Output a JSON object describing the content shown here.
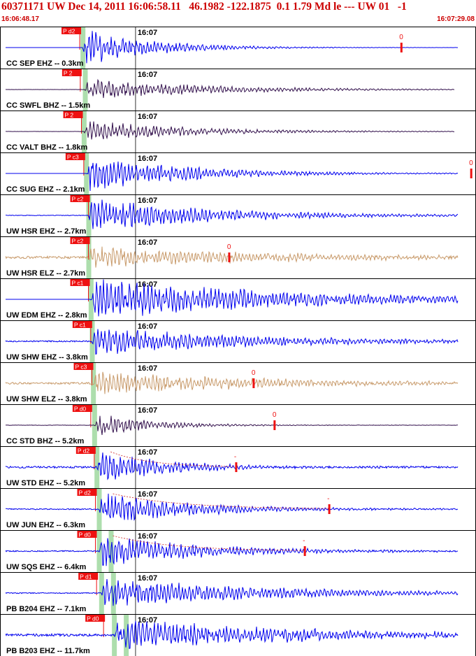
{
  "header": {
    "title": "60371171 UW Dec 14, 2011 16:06:58.11   46.1982 -122.1875  0.1 1.79 Md le --- UW 01   -1",
    "start_time": "16:06:48.17",
    "end_time": "16:07:29.08"
  },
  "colors": {
    "header_red": "#cc0000",
    "pick_red": "#ee1111",
    "blue": "#0000ee",
    "dark": "#33114d",
    "tan": "#c89a6a",
    "green_band": "#9fd89f"
  },
  "chart_data": {
    "type": "line",
    "title": "60371171 UW Dec 14, 2011 16:06:58.11   46.1982 -122.1875  0.1 1.79 Md le --- UW 01   -1",
    "xlim": [
      "16:06:48.17",
      "16:07:29.08"
    ],
    "minute_marker": "16:07",
    "series": [
      {
        "name": "CC SEP EHZ -- 0.3km",
        "color": "blue",
        "pick": "P d2",
        "pick_time_s": 6.85,
        "onset_s": 7.1,
        "amp": 0.9,
        "decay": 6,
        "noise": 0.0,
        "coda": "0",
        "coda_time_s": 34.5,
        "duration_mark": false
      },
      {
        "name": "CC SWFL BHZ -- 1.5km",
        "color": "dark",
        "pick": "P 2",
        "pick_time_s": 6.9,
        "onset_s": 7.3,
        "amp": 0.55,
        "decay": 10,
        "noise": 0.01,
        "coda": "",
        "coda_time_s": null,
        "duration_mark": false
      },
      {
        "name": "CC VALT BHZ -- 1.8km",
        "color": "dark",
        "pick": "P 2",
        "pick_time_s": 7.0,
        "onset_s": 7.2,
        "amp": 0.55,
        "decay": 9,
        "noise": 0.01,
        "coda": "",
        "coda_time_s": null,
        "duration_mark": false
      },
      {
        "name": "CC SUG EHZ -- 2.1km",
        "color": "blue",
        "pick": "P c3",
        "pick_time_s": 7.2,
        "onset_s": 7.4,
        "amp": 0.85,
        "decay": 9,
        "noise": 0.0,
        "coda": "0",
        "coda_time_s": 40.5,
        "duration_mark": false
      },
      {
        "name": "UW HSR EHZ -- 2.7km",
        "color": "blue",
        "pick": "P c2",
        "pick_time_s": 7.6,
        "onset_s": 7.6,
        "amp": 0.85,
        "decay": 11,
        "noise": 0.03,
        "coda": "",
        "coda_time_s": null,
        "duration_mark": false
      },
      {
        "name": "UW HSR ELZ -- 2.7km",
        "color": "tan",
        "pick": "P c2",
        "pick_time_s": 7.6,
        "onset_s": 7.6,
        "amp": 0.6,
        "decay": 14,
        "noise": 0.12,
        "coda": "0",
        "coda_time_s": 19.7,
        "duration_mark": false
      },
      {
        "name": "UW EDM EHZ -- 2.8km",
        "color": "blue",
        "pick": "P c1",
        "pick_time_s": 7.6,
        "onset_s": 7.8,
        "amp": 1.0,
        "decay": 18,
        "noise": 0.0,
        "coda": "",
        "coda_time_s": null,
        "duration_mark": false
      },
      {
        "name": "UW SHW EHZ -- 3.8km",
        "color": "blue",
        "pick": "P c1",
        "pick_time_s": 7.8,
        "onset_s": 7.9,
        "amp": 0.7,
        "decay": 14,
        "noise": 0.07,
        "coda": "",
        "coda_time_s": null,
        "duration_mark": false
      },
      {
        "name": "UW SHW ELZ -- 3.8km",
        "color": "tan",
        "pick": "P c3",
        "pick_time_s": 7.9,
        "onset_s": 8.0,
        "amp": 0.6,
        "decay": 14,
        "noise": 0.1,
        "coda": "0",
        "coda_time_s": 21.8,
        "duration_mark": false
      },
      {
        "name": "CC STD BHZ -- 5.2km",
        "color": "dark",
        "pick": "P d0",
        "pick_time_s": 7.8,
        "onset_s": 8.1,
        "amp": 0.6,
        "decay": 5,
        "noise": 0.02,
        "coda": "0",
        "coda_time_s": 23.6,
        "duration_mark": false
      },
      {
        "name": "UW STD EHZ -- 5.2km",
        "color": "blue",
        "pick": "P d2",
        "pick_time_s": 8.1,
        "onset_s": 8.3,
        "amp": 0.85,
        "decay": 6,
        "noise": 0.1,
        "coda": "-",
        "coda_time_s": 20.3,
        "duration_mark": true
      },
      {
        "name": "UW JUN EHZ -- 6.3km",
        "color": "blue",
        "pick": "P d2",
        "pick_time_s": 8.2,
        "onset_s": 8.5,
        "amp": 0.8,
        "decay": 8,
        "noise": 0.06,
        "coda": "-",
        "coda_time_s": 28.3,
        "duration_mark": true
      },
      {
        "name": "UW SQS EHZ -- 6.4km",
        "color": "blue",
        "pick": "P d0",
        "pick_time_s": 8.2,
        "onset_s": 8.5,
        "amp": 0.8,
        "decay": 9,
        "noise": 0.06,
        "coda": "-",
        "coda_time_s": 26.2,
        "duration_mark": true
      },
      {
        "name": "PB B204 EHZ -- 7.1km",
        "color": "blue",
        "pick": "P d1",
        "pick_time_s": 8.3,
        "onset_s": 8.7,
        "amp": 0.75,
        "decay": 14,
        "noise": 0.05,
        "coda": "",
        "coda_time_s": null,
        "duration_mark": false
      },
      {
        "name": "PB B203 EHZ -- 11.7km",
        "color": "blue",
        "pick": "P d0",
        "pick_time_s": 8.9,
        "onset_s": 9.8,
        "amp": 0.8,
        "decay": 16,
        "noise": 0.12,
        "coda": "",
        "coda_time_s": null,
        "duration_mark": false
      }
    ]
  }
}
